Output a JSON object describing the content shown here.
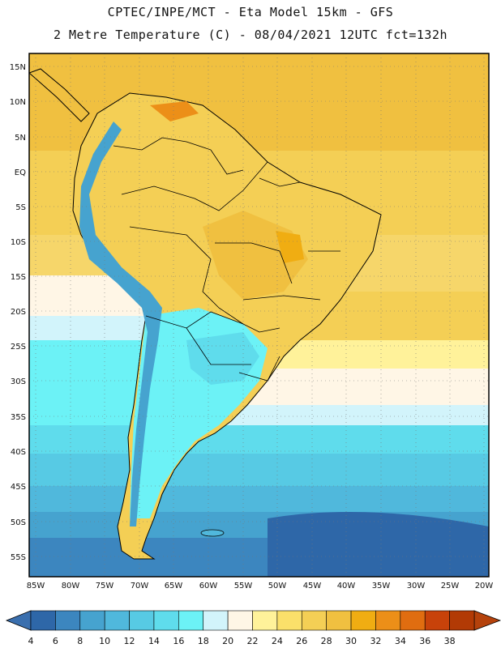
{
  "header": {
    "title_line1": "CPTEC/INPE/MCT -  Eta Model 15km - GFS",
    "title_line2": "2 Metre Temperature (C) - 08/04/2021 12UTC fct=132h"
  },
  "axes": {
    "lat_labels": [
      "15N",
      "10N",
      "5N",
      "EQ",
      "5S",
      "10S",
      "15S",
      "20S",
      "25S",
      "30S",
      "35S",
      "40S",
      "45S",
      "50S",
      "55S"
    ],
    "lon_labels": [
      "85W",
      "80W",
      "75W",
      "70W",
      "65W",
      "60W",
      "55W",
      "50W",
      "45W",
      "40W",
      "35W",
      "30W",
      "25W",
      "20W"
    ]
  },
  "colorbar": {
    "labels": [
      "4",
      "6",
      "8",
      "10",
      "12",
      "14",
      "16",
      "18",
      "20",
      "22",
      "24",
      "26",
      "28",
      "30",
      "32",
      "34",
      "36",
      "38"
    ],
    "colors": [
      "#2e67a8",
      "#3c86bf",
      "#46a3cf",
      "#50b8dc",
      "#57cae4",
      "#5fdcec",
      "#6cf2f6",
      "#d2f4fb",
      "#fff6e6",
      "#fff29a",
      "#fbe06a",
      "#f4cf55",
      "#f0c040",
      "#f0ad12",
      "#ec8f18",
      "#e06d10",
      "#c8420a",
      "#b23a05"
    ],
    "low_color": "#3a6fae",
    "high_color": "#b5420c"
  },
  "legend_colors": {
    "ocean_deep": "#2f67a6",
    "ocean_mid": "#46a3cf",
    "ocean_cool": "#5fd0e6",
    "land_warm": "#f4cf55",
    "land_hot": "#f0ad12",
    "andes": "#6cf2f6",
    "border": "#000000"
  }
}
